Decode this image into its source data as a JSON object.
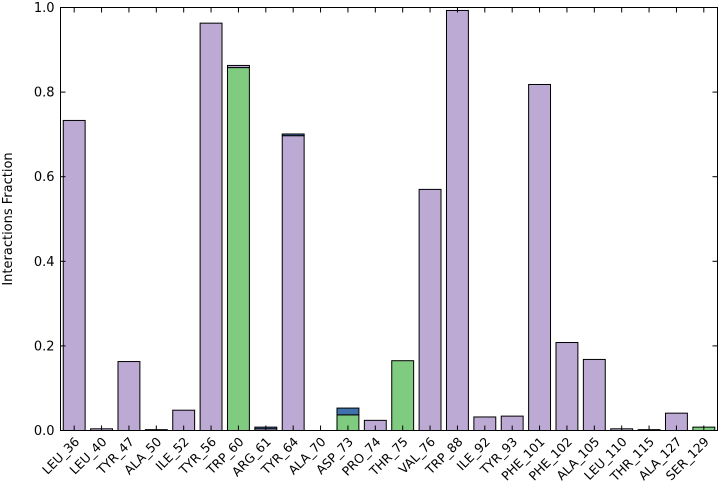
{
  "chart_data": {
    "type": "bar",
    "stacked": true,
    "title": "",
    "xlabel": "",
    "ylabel": "Interactions Fraction",
    "ylim": [
      0,
      1.0
    ],
    "yticks": [
      "0.0",
      "0.2",
      "0.4",
      "0.6",
      "0.8",
      "1.0"
    ],
    "grid": false,
    "categories": [
      "LEU_36",
      "LEU_40",
      "TYR_47",
      "ALA_50",
      "ILE_52",
      "TYR_56",
      "TRP_60",
      "ARG_61",
      "TYR_64",
      "ALA_70",
      "ASP_73",
      "PRO_74",
      "THR_75",
      "VAL_76",
      "TRP_88",
      "ILE_92",
      "TYR_93",
      "PHE_101",
      "PHE_102",
      "ALA_105",
      "LEU_110",
      "THR_115",
      "ALA_127",
      "SER_129"
    ],
    "series": [
      {
        "color": "#7fcb7f",
        "values": [
          0,
          0,
          0,
          0,
          0,
          0,
          0.858,
          0,
          0,
          0,
          0.037,
          0,
          0.165,
          0,
          0,
          0,
          0,
          0,
          0,
          0,
          0,
          0,
          0,
          0.008
        ]
      },
      {
        "color": "#bcaad5",
        "values": [
          0.733,
          0.004,
          0.163,
          0.002,
          0.048,
          0.963,
          0.005,
          0.004,
          0.697,
          0,
          0,
          0.024,
          0,
          0.57,
          0.993,
          0.032,
          0.034,
          0.818,
          0.208,
          0.168,
          0.004,
          0.002,
          0.041,
          0
        ]
      },
      {
        "color": "#3f72ad",
        "values": [
          0,
          0,
          0,
          0,
          0,
          0,
          0,
          0.004,
          0.004,
          0,
          0.016,
          0,
          0,
          0,
          0,
          0,
          0,
          0,
          0,
          0,
          0,
          0,
          0,
          0
        ]
      }
    ],
    "colors": {
      "green": "#7fcb7f",
      "purple": "#bcaad5",
      "blue": "#3f72ad",
      "edge": "#000000"
    }
  }
}
